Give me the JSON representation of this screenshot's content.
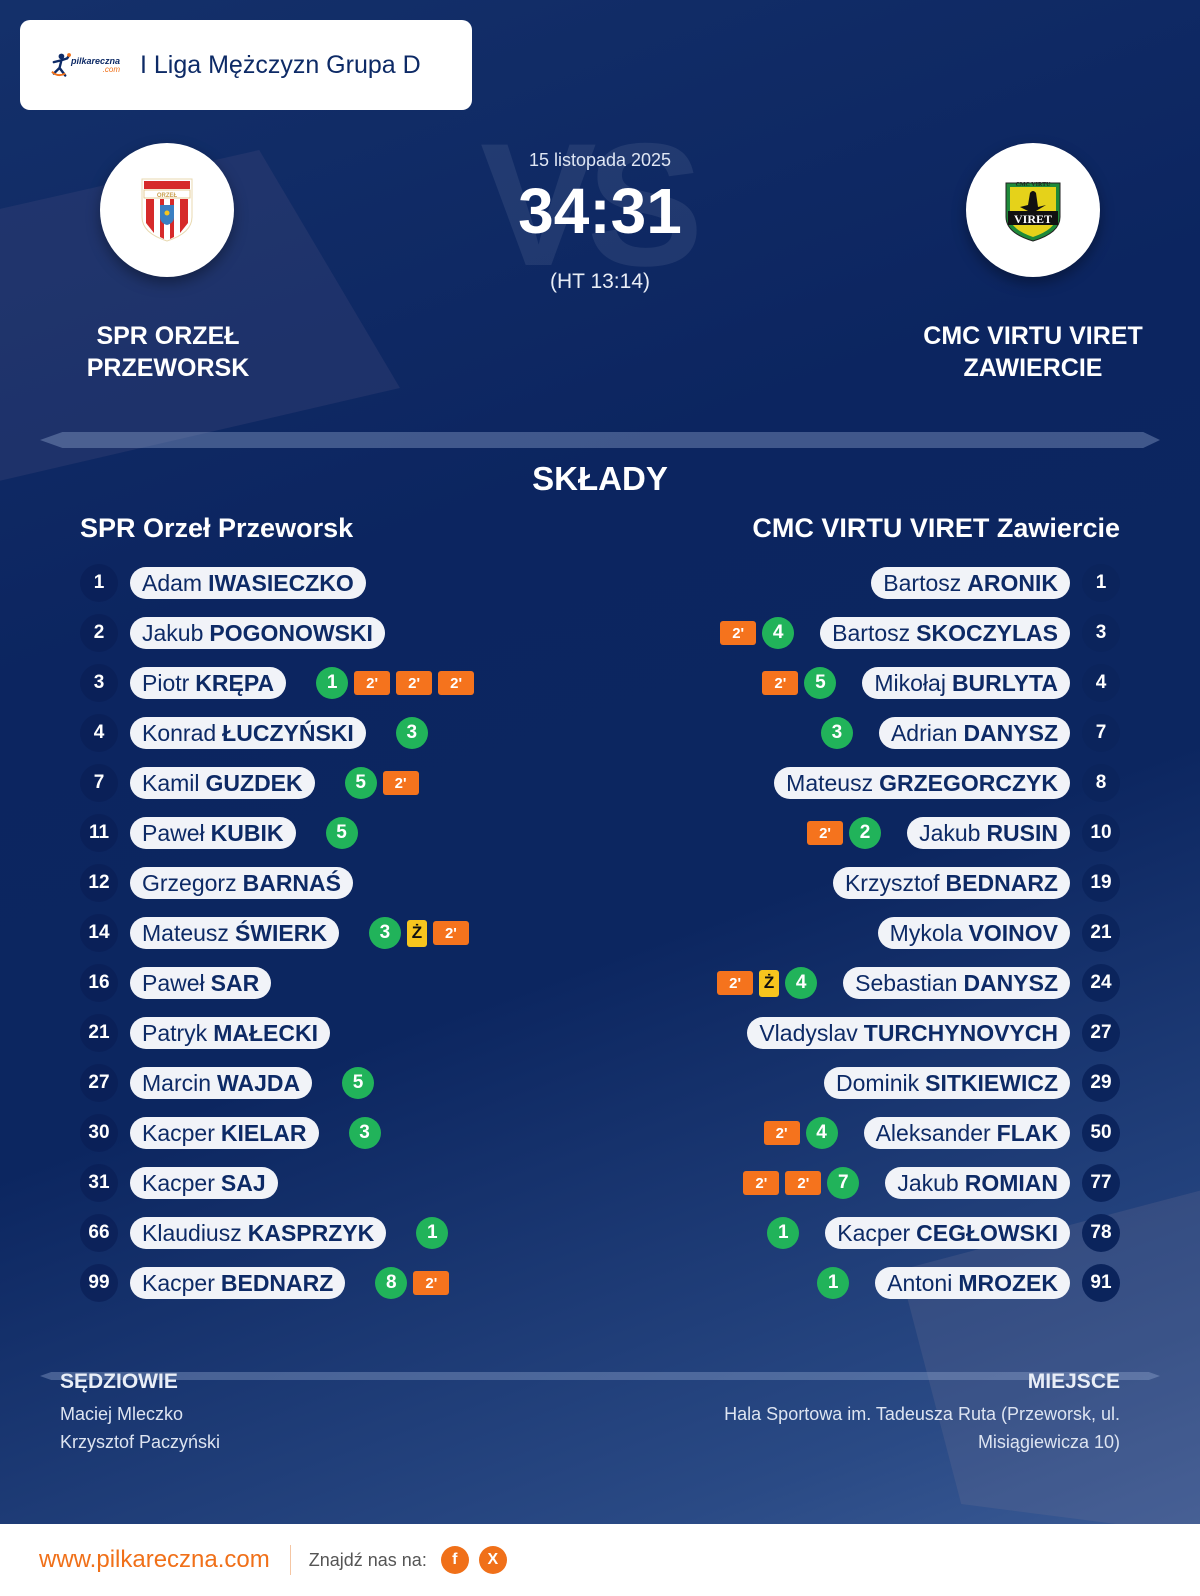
{
  "header": {
    "logo_text": "pilkareczna",
    "logo_domain": ".com",
    "league": "I Liga Mężczyzn Grupa D"
  },
  "match": {
    "date": "15 listopada 2025",
    "score": "34:31",
    "halftime": "(HT 13:14)",
    "vs_watermark": "VS",
    "home_team": "SPR ORZEŁ PRZEWORSK",
    "home_team_line1": "SPR ORZEŁ",
    "home_team_line2": "PRZEWORSK",
    "away_team_line1": "CMC VIRTU VIRET",
    "away_team_line2": "ZAWIERCIE",
    "home_crest": "orzel-crest",
    "away_crest": "viret-crest"
  },
  "lineups": {
    "title": "SKŁADY",
    "home": {
      "name": "SPR Orzeł Przeworsk",
      "players": [
        {
          "num": "1",
          "first": "Adam",
          "last": "IWASIECZKO",
          "goals": null,
          "yellow": false,
          "susp": 0
        },
        {
          "num": "2",
          "first": "Jakub",
          "last": "POGONOWSKI",
          "goals": null,
          "yellow": false,
          "susp": 0
        },
        {
          "num": "3",
          "first": "Piotr",
          "last": "KRĘPA",
          "goals": "1",
          "yellow": false,
          "susp": 3
        },
        {
          "num": "4",
          "first": "Konrad",
          "last": "ŁUCZYŃSKI",
          "goals": "3",
          "yellow": false,
          "susp": 0
        },
        {
          "num": "7",
          "first": "Kamil",
          "last": "GUZDEK",
          "goals": "5",
          "yellow": false,
          "susp": 1
        },
        {
          "num": "11",
          "first": "Paweł",
          "last": "KUBIK",
          "goals": "5",
          "yellow": false,
          "susp": 0
        },
        {
          "num": "12",
          "first": "Grzegorz",
          "last": "BARNAŚ",
          "goals": null,
          "yellow": false,
          "susp": 0
        },
        {
          "num": "14",
          "first": "Mateusz",
          "last": "ŚWIERK",
          "goals": "3",
          "yellow": true,
          "susp": 1
        },
        {
          "num": "16",
          "first": "Paweł",
          "last": "SAR",
          "goals": null,
          "yellow": false,
          "susp": 0
        },
        {
          "num": "21",
          "first": "Patryk",
          "last": "MAŁECKI",
          "goals": null,
          "yellow": false,
          "susp": 0
        },
        {
          "num": "27",
          "first": "Marcin",
          "last": "WAJDA",
          "goals": "5",
          "yellow": false,
          "susp": 0
        },
        {
          "num": "30",
          "first": "Kacper",
          "last": "KIELAR",
          "goals": "3",
          "yellow": false,
          "susp": 0
        },
        {
          "num": "31",
          "first": "Kacper",
          "last": "SAJ",
          "goals": null,
          "yellow": false,
          "susp": 0
        },
        {
          "num": "66",
          "first": "Klaudiusz",
          "last": "KASPRZYK",
          "goals": "1",
          "yellow": false,
          "susp": 0
        },
        {
          "num": "99",
          "first": "Kacper",
          "last": "BEDNARZ",
          "goals": "8",
          "yellow": false,
          "susp": 1
        }
      ]
    },
    "away": {
      "name": "CMC VIRTU VIRET Zawiercie",
      "players": [
        {
          "num": "1",
          "first": "Bartosz",
          "last": "ARONIK",
          "goals": null,
          "yellow": false,
          "susp": 0
        },
        {
          "num": "3",
          "first": "Bartosz",
          "last": "SKOCZYLAS",
          "goals": "4",
          "yellow": false,
          "susp": 1
        },
        {
          "num": "4",
          "first": "Mikołaj",
          "last": "BURLYTA",
          "goals": "5",
          "yellow": false,
          "susp": 1
        },
        {
          "num": "7",
          "first": "Adrian",
          "last": "DANYSZ",
          "goals": "3",
          "yellow": false,
          "susp": 0
        },
        {
          "num": "8",
          "first": "Mateusz",
          "last": "GRZEGORCZYK",
          "goals": null,
          "yellow": false,
          "susp": 0
        },
        {
          "num": "10",
          "first": "Jakub",
          "last": "RUSIN",
          "goals": "2",
          "yellow": false,
          "susp": 1
        },
        {
          "num": "19",
          "first": "Krzysztof",
          "last": "BEDNARZ",
          "goals": null,
          "yellow": false,
          "susp": 0
        },
        {
          "num": "21",
          "first": "Mykola",
          "last": "VOINOV",
          "goals": null,
          "yellow": false,
          "susp": 0
        },
        {
          "num": "24",
          "first": "Sebastian",
          "last": "DANYSZ",
          "goals": "4",
          "yellow": true,
          "susp": 1
        },
        {
          "num": "27",
          "first": "Vladyslav",
          "last": "TURCHYNOVYCH",
          "goals": null,
          "yellow": false,
          "susp": 0
        },
        {
          "num": "29",
          "first": "Dominik",
          "last": "SITKIEWICZ",
          "goals": null,
          "yellow": false,
          "susp": 0
        },
        {
          "num": "50",
          "first": "Aleksander",
          "last": "FLAK",
          "goals": "4",
          "yellow": false,
          "susp": 1
        },
        {
          "num": "77",
          "first": "Jakub",
          "last": "ROMIAN",
          "goals": "7",
          "yellow": false,
          "susp": 2
        },
        {
          "num": "78",
          "first": "Kacper",
          "last": "CEGŁOWSKI",
          "goals": "1",
          "yellow": false,
          "susp": 0
        },
        {
          "num": "91",
          "first": "Antoni",
          "last": "MROZEK",
          "goals": "1",
          "yellow": false,
          "susp": 0
        }
      ]
    },
    "suspension_label": "2'",
    "yellow_label": "Ż"
  },
  "officials": {
    "label": "SĘDZIOWIE",
    "names": [
      "Maciej Mleczko",
      "Krzysztof Paczyński"
    ]
  },
  "venue": {
    "label": "MIEJSCE",
    "text": "Hala Sportowa im. Tadeusza Ruta (Przeworsk, ul. Misiągiewicza 10)"
  },
  "footer": {
    "website": "www.pilkareczna.com",
    "find_us": "Znajdź nas na:",
    "social": [
      {
        "name": "facebook",
        "glyph": "f"
      },
      {
        "name": "x",
        "glyph": "X"
      }
    ]
  },
  "colors": {
    "navy": "#0d2a66",
    "orange": "#f07019",
    "goal_green": "#21b35a",
    "suspension_orange": "#f5731d",
    "yellow_card": "#f7c51e"
  }
}
